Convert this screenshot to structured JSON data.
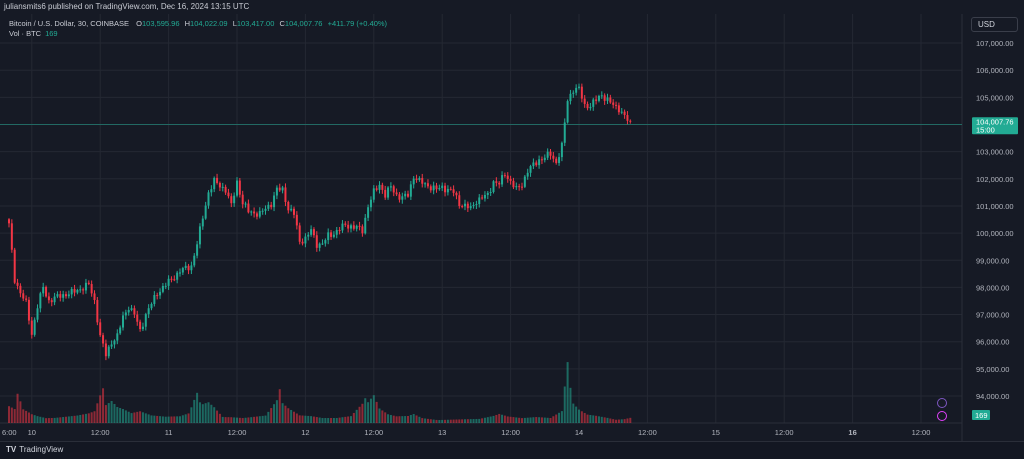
{
  "header": {
    "published": "juliansmits6 published on TradingView.com, Dec 16, 2024 13:15 UTC",
    "symbol": "Bitcoin / U.S. Dollar, 30, COINBASE",
    "o_label": "O",
    "o_value": "103,595.96",
    "h_label": "H",
    "h_value": "104,022.09",
    "l_label": "L",
    "l_value": "103,417.00",
    "c_label": "C",
    "c_value": "104,007.76",
    "change": "+411.79 (+0.40%)",
    "vol_label": "Vol · BTC",
    "vol_value": "169"
  },
  "currency_button": "USD",
  "footer": {
    "brand": "TradingView",
    "logo_icon": "tradingview-logo-icon"
  },
  "colors": {
    "up": "#22ab94",
    "down": "#f23645",
    "background": "#161a25",
    "grid": "#242833"
  },
  "chart_data": {
    "type": "candlestick",
    "symbol": "BTCUSD",
    "interval": "30",
    "exchange": "COINBASE",
    "price_label": "104,007.76",
    "countdown_label": "15:00",
    "volume_label": "169",
    "price_ticks": [
      "107,000.00",
      "106,000.00",
      "105,000.00",
      "104,000.00",
      "103,000.00",
      "102,000.00",
      "101,000.00",
      "100,000.00",
      "99,000.00",
      "98,000.00",
      "97,000.00",
      "96,000.00",
      "95,000.00",
      "94,000.00"
    ],
    "price_tick_values": [
      107000,
      106000,
      105000,
      104000,
      103000,
      102000,
      101000,
      100000,
      99000,
      98000,
      97000,
      96000,
      95000,
      94000
    ],
    "x_ticks": [
      {
        "label": "6:00",
        "t": -4
      },
      {
        "label": "10",
        "t": 8
      },
      {
        "label": "12:00",
        "t": 32
      },
      {
        "label": "11",
        "t": 56
      },
      {
        "label": "12:00",
        "t": 80
      },
      {
        "label": "12",
        "t": 104
      },
      {
        "label": "12:00",
        "t": 128
      },
      {
        "label": "13",
        "t": 152
      },
      {
        "label": "12:00",
        "t": 176
      },
      {
        "label": "14",
        "t": 200
      },
      {
        "label": "12:00",
        "t": 224
      },
      {
        "label": "15",
        "t": 248
      },
      {
        "label": "12:00",
        "t": 272
      },
      {
        "label": "16",
        "t": 296
      },
      {
        "label": "12:00",
        "t": 320
      }
    ],
    "anchors": [
      [
        0,
        100300
      ],
      [
        2,
        98300
      ],
      [
        4,
        97800
      ],
      [
        6,
        97400
      ],
      [
        8,
        96300
      ],
      [
        10,
        97300
      ],
      [
        12,
        98000
      ],
      [
        14,
        97500
      ],
      [
        18,
        97700
      ],
      [
        22,
        97800
      ],
      [
        26,
        98000
      ],
      [
        28,
        98100
      ],
      [
        30,
        97500
      ],
      [
        32,
        96200
      ],
      [
        34,
        95500
      ],
      [
        36,
        96000
      ],
      [
        38,
        96200
      ],
      [
        40,
        96900
      ],
      [
        42,
        97300
      ],
      [
        44,
        97000
      ],
      [
        46,
        96400
      ],
      [
        48,
        97000
      ],
      [
        52,
        97800
      ],
      [
        56,
        98200
      ],
      [
        60,
        98600
      ],
      [
        64,
        98800
      ],
      [
        66,
        99600
      ],
      [
        68,
        100600
      ],
      [
        70,
        101500
      ],
      [
        72,
        101900
      ],
      [
        76,
        101600
      ],
      [
        78,
        101000
      ],
      [
        80,
        101900
      ],
      [
        82,
        101100
      ],
      [
        84,
        100800
      ],
      [
        88,
        100700
      ],
      [
        92,
        101100
      ],
      [
        94,
        101600
      ],
      [
        96,
        101600
      ],
      [
        98,
        100900
      ],
      [
        100,
        100700
      ],
      [
        102,
        99700
      ],
      [
        104,
        99800
      ],
      [
        106,
        100100
      ],
      [
        108,
        99600
      ],
      [
        110,
        99600
      ],
      [
        112,
        99900
      ],
      [
        114,
        100000
      ],
      [
        118,
        100300
      ],
      [
        122,
        100200
      ],
      [
        124,
        100100
      ],
      [
        126,
        101000
      ],
      [
        128,
        101500
      ],
      [
        130,
        101800
      ],
      [
        132,
        101400
      ],
      [
        134,
        101700
      ],
      [
        136,
        101400
      ],
      [
        138,
        101300
      ],
      [
        140,
        101400
      ],
      [
        142,
        102100
      ],
      [
        144,
        101900
      ],
      [
        148,
        101700
      ],
      [
        150,
        101600
      ],
      [
        152,
        101700
      ],
      [
        156,
        101500
      ],
      [
        158,
        101100
      ],
      [
        160,
        101000
      ],
      [
        162,
        100900
      ],
      [
        164,
        101200
      ],
      [
        168,
        101400
      ],
      [
        170,
        101900
      ],
      [
        172,
        101800
      ],
      [
        174,
        102200
      ],
      [
        176,
        101900
      ],
      [
        178,
        101600
      ],
      [
        180,
        101800
      ],
      [
        182,
        102300
      ],
      [
        184,
        102500
      ],
      [
        186,
        102700
      ],
      [
        188,
        102800
      ],
      [
        190,
        102900
      ],
      [
        192,
        102600
      ],
      [
        194,
        103200
      ],
      [
        196,
        104900
      ],
      [
        198,
        105300
      ],
      [
        200,
        105300
      ],
      [
        202,
        104700
      ],
      [
        204,
        104700
      ],
      [
        206,
        104900
      ],
      [
        208,
        105100
      ],
      [
        210,
        104900
      ],
      [
        212,
        104700
      ],
      [
        214,
        104600
      ],
      [
        216,
        104300
      ],
      [
        218,
        104000
      ]
    ],
    "volumes": [
      [
        0,
        0.28
      ],
      [
        2,
        0.22
      ],
      [
        3,
        0.45
      ],
      [
        5,
        0.2
      ],
      [
        8,
        0.12
      ],
      [
        10,
        0.09
      ],
      [
        13,
        0.06
      ],
      [
        16,
        0.06
      ],
      [
        20,
        0.07
      ],
      [
        24,
        0.08
      ],
      [
        28,
        0.1
      ],
      [
        30,
        0.12
      ],
      [
        32,
        0.28
      ],
      [
        33,
        0.35
      ],
      [
        34,
        0.18
      ],
      [
        36,
        0.22
      ],
      [
        38,
        0.16
      ],
      [
        40,
        0.14
      ],
      [
        43,
        0.1
      ],
      [
        46,
        0.12
      ],
      [
        50,
        0.08
      ],
      [
        55,
        0.07
      ],
      [
        60,
        0.08
      ],
      [
        63,
        0.12
      ],
      [
        64,
        0.2
      ],
      [
        66,
        0.4
      ],
      [
        67,
        0.28
      ],
      [
        68,
        0.26
      ],
      [
        70,
        0.3
      ],
      [
        72,
        0.24
      ],
      [
        75,
        0.1
      ],
      [
        78,
        0.09
      ],
      [
        82,
        0.07
      ],
      [
        86,
        0.08
      ],
      [
        90,
        0.09
      ],
      [
        94,
        0.26
      ],
      [
        95,
        0.38
      ],
      [
        96,
        0.22
      ],
      [
        98,
        0.16
      ],
      [
        100,
        0.12
      ],
      [
        102,
        0.08
      ],
      [
        106,
        0.07
      ],
      [
        110,
        0.05
      ],
      [
        115,
        0.05
      ],
      [
        120,
        0.07
      ],
      [
        124,
        0.2
      ],
      [
        125,
        0.26
      ],
      [
        126,
        0.22
      ],
      [
        128,
        0.3
      ],
      [
        130,
        0.16
      ],
      [
        133,
        0.1
      ],
      [
        136,
        0.08
      ],
      [
        140,
        0.09
      ],
      [
        142,
        0.12
      ],
      [
        145,
        0.07
      ],
      [
        150,
        0.05
      ],
      [
        155,
        0.05
      ],
      [
        160,
        0.05
      ],
      [
        165,
        0.05
      ],
      [
        170,
        0.08
      ],
      [
        172,
        0.1
      ],
      [
        175,
        0.07
      ],
      [
        180,
        0.05
      ],
      [
        185,
        0.06
      ],
      [
        190,
        0.05
      ],
      [
        194,
        0.12
      ],
      [
        196,
        0.62
      ],
      [
        197,
        0.36
      ],
      [
        198,
        0.2
      ],
      [
        200,
        0.14
      ],
      [
        203,
        0.09
      ],
      [
        206,
        0.08
      ],
      [
        210,
        0.06
      ],
      [
        213,
        0.04
      ],
      [
        216,
        0.05
      ],
      [
        218,
        0.07
      ]
    ]
  }
}
